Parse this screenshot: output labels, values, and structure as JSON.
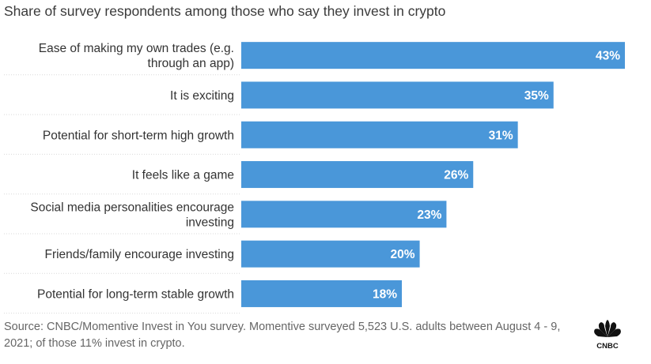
{
  "subtitle": "Share of survey respondents among those who say they invest in crypto",
  "source": "Source: CNBC/Momentive Invest in You survey. Momentive surveyed 5,523 U.S. adults between August 4 - 9, 2021; of those 11% invest in crypto.",
  "logo": {
    "text": "CNBC"
  },
  "colors": {
    "bar": "#4a97d9",
    "label_inside": "#ffffff",
    "grid": "#d9d9d9"
  },
  "chart_data": {
    "type": "bar",
    "orientation": "horizontal",
    "categories": [
      [
        "Ease of making my own trades (e.g.",
        "through an app)"
      ],
      [
        "It is exciting"
      ],
      [
        "Potential for short-term high growth"
      ],
      [
        "It feels like a game"
      ],
      [
        "Social media personalities encourage",
        "investing"
      ],
      [
        "Friends/family encourage investing"
      ],
      [
        "Potential for long-term stable growth"
      ]
    ],
    "values": [
      43,
      35,
      31,
      26,
      23,
      20,
      18
    ],
    "value_labels": [
      "43%",
      "35%",
      "31%",
      "26%",
      "23%",
      "20%",
      "18%"
    ],
    "unit": "%",
    "xlim": [
      0,
      43
    ]
  }
}
